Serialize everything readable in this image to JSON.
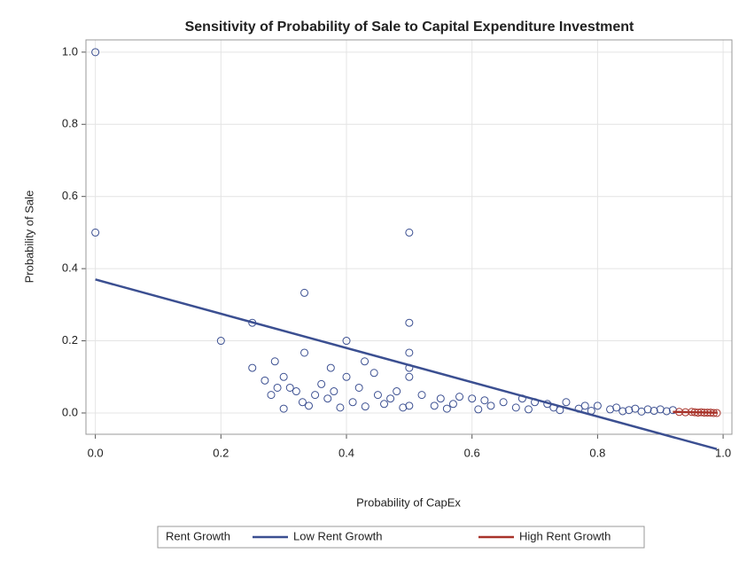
{
  "chart_data": {
    "type": "scatter",
    "title": "Sensitivity of Probability of Sale to Capital Expenditure Investment",
    "x_label": "Probability of CapEx",
    "y_label": "Probability of Sale",
    "legend_title": "Rent Growth",
    "xlim": [
      -0.015,
      1.014
    ],
    "ylim": [
      -0.059,
      1.034
    ],
    "xticks": [
      {
        "value": 0,
        "label": "0.0"
      },
      {
        "value": 0.2,
        "label": "0.2"
      },
      {
        "value": 0.4,
        "label": "0.4"
      },
      {
        "value": 0.6,
        "label": "0.6"
      },
      {
        "value": 0.8,
        "label": "0.8"
      },
      {
        "value": 1,
        "label": "1.0"
      }
    ],
    "yticks": [
      {
        "value": 0,
        "label": "0.0"
      },
      {
        "value": 0.2,
        "label": "0.2"
      },
      {
        "value": 0.4,
        "label": "0.4"
      },
      {
        "value": 0.6,
        "label": "0.6"
      },
      {
        "value": 0.8,
        "label": "0.8"
      },
      {
        "value": 1,
        "label": "1.0"
      }
    ],
    "grid": true,
    "series": [
      {
        "name": "Low Rent Growth",
        "color": "#3b4f91",
        "x": [
          0,
          0,
          0.5,
          0.333,
          0.2,
          0.25,
          0.25,
          0.4,
          0.5,
          0.5,
          0.286,
          0.333,
          0.375,
          0.429,
          0.4,
          0.5,
          0.5,
          0.444,
          0.27,
          0.28,
          0.3,
          0.31,
          0.32,
          0.35,
          0.36,
          0.38,
          0.42,
          0.45,
          0.47,
          0.48,
          0.52,
          0.55,
          0.58,
          0.6,
          0.62,
          0.65,
          0.68,
          0.7,
          0.72,
          0.75,
          0.78,
          0.8,
          0.83,
          0.86,
          0.88,
          0.9,
          0.92,
          0.29,
          0.33,
          0.37,
          0.41,
          0.46,
          0.5,
          0.54,
          0.57,
          0.63,
          0.67,
          0.73,
          0.77,
          0.82,
          0.85,
          0.89,
          0.91,
          0.3,
          0.34,
          0.39,
          0.43,
          0.49,
          0.56,
          0.61,
          0.69,
          0.74,
          0.79,
          0.84,
          0.87
        ],
        "values": [
          1,
          0.5,
          0.5,
          0.333,
          0.2,
          0.25,
          0.125,
          0.2,
          0.25,
          0.167,
          0.143,
          0.167,
          0.125,
          0.143,
          0.1,
          0.125,
          0.1,
          0.111,
          0.09,
          0.05,
          0.1,
          0.07,
          0.06,
          0.05,
          0.08,
          0.06,
          0.07,
          0.05,
          0.04,
          0.06,
          0.05,
          0.04,
          0.045,
          0.04,
          0.035,
          0.03,
          0.04,
          0.03,
          0.025,
          0.03,
          0.02,
          0.02,
          0.015,
          0.012,
          0.01,
          0.01,
          0.008,
          0.07,
          0.03,
          0.04,
          0.03,
          0.025,
          0.02,
          0.02,
          0.025,
          0.02,
          0.015,
          0.015,
          0.012,
          0.01,
          0.008,
          0.006,
          0.005,
          0.012,
          0.02,
          0.015,
          0.018,
          0.015,
          0.012,
          0.01,
          0.01,
          0.008,
          0.006,
          0.005,
          0.004
        ],
        "fit_x": [
          0,
          0.99
        ],
        "fit_values": [
          0.37,
          -0.1
        ]
      },
      {
        "name": "High Rent Growth",
        "color": "#a8332a",
        "x": [
          0.93,
          0.94,
          0.95,
          0.955,
          0.96,
          0.965,
          0.97,
          0.975,
          0.98,
          0.985,
          0.99
        ],
        "values": [
          0.003,
          0.002,
          0.003,
          0.002,
          0.001,
          0.002,
          0.001,
          0.001,
          0.001,
          0,
          0
        ],
        "fit_x": [
          0.92,
          0.99
        ],
        "fit_values": [
          0.003,
          0.001
        ]
      }
    ]
  }
}
